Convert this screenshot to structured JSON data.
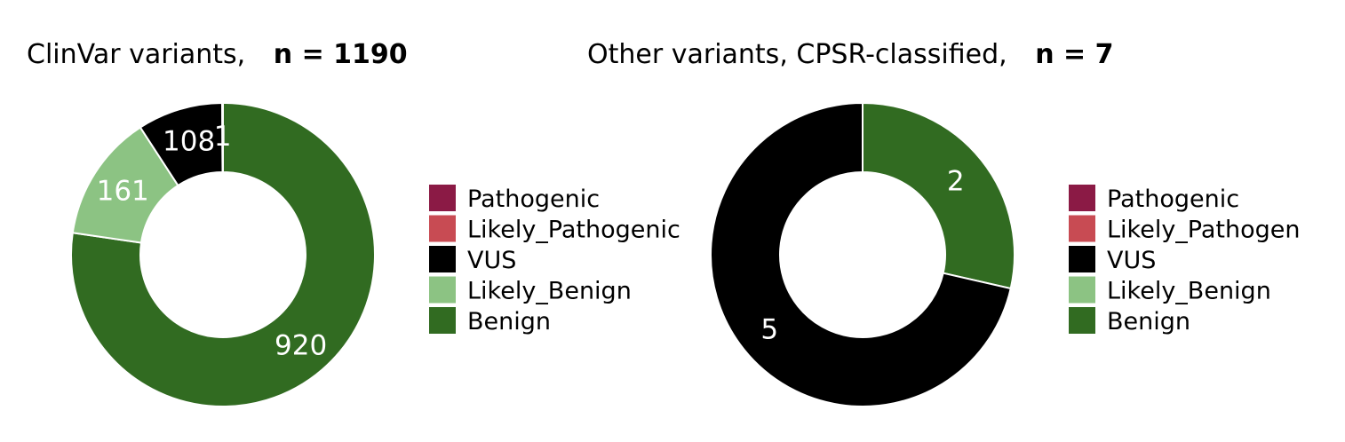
{
  "colors": {
    "Pathogenic": "#8b1a45",
    "Likely_Pathogenic": "#c84b53",
    "VUS": "#000000",
    "Likely_Benign": "#8cc383",
    "Benign": "#316b21"
  },
  "chart_data": [
    {
      "type": "pie",
      "title": "ClinVar variants,",
      "title_n": "n = 1190",
      "legend_position": "right",
      "categories": [
        "Pathogenic",
        "Likely_Pathogenic",
        "VUS",
        "Likely_Benign",
        "Benign"
      ],
      "legend_labels": [
        "Pathogenic",
        "Likely_Pathogenic",
        "VUS",
        "Likely_Benign",
        "Benign"
      ],
      "slices": [
        {
          "category": "Benign",
          "value": 920,
          "label": "920"
        },
        {
          "category": "Likely_Benign",
          "value": 161,
          "label": "161"
        },
        {
          "category": "VUS",
          "value": 108,
          "label": "108"
        },
        {
          "category": "Likely_Pathogenic",
          "value": 1,
          "label": "1"
        }
      ]
    },
    {
      "type": "pie",
      "title": "Other variants, CPSR-classified,",
      "title_n": "n = 7",
      "legend_position": "right",
      "categories": [
        "Pathogenic",
        "Likely_Pathogenic",
        "VUS",
        "Likely_Benign",
        "Benign"
      ],
      "legend_labels": [
        "Pathogenic",
        "Likely_Pathogen",
        "VUS",
        "Likely_Benign",
        "Benign"
      ],
      "slices": [
        {
          "category": "Benign",
          "value": 2,
          "label": "2"
        },
        {
          "category": "VUS",
          "value": 5,
          "label": "5"
        }
      ]
    }
  ]
}
